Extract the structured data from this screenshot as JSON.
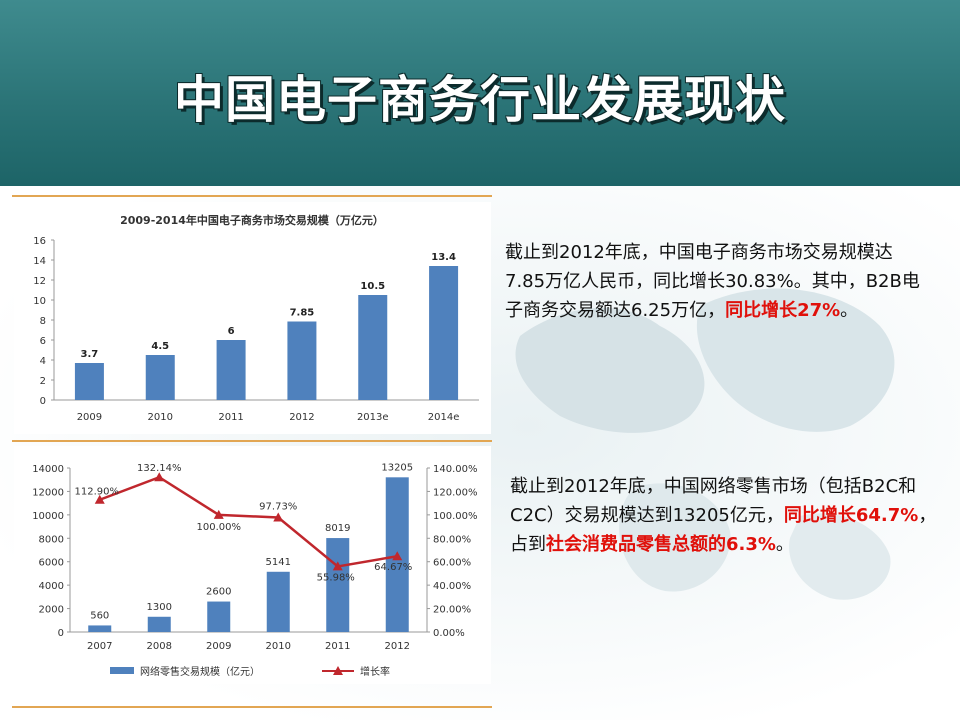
{
  "slide": {
    "title": "中国电子商务行业发展现状"
  },
  "text1": {
    "prefix": "截止到2012年底，中国电子商务市场交易规模达7.85万亿人民币，同比增长30.83%。其中，B2B电子商务交易额达6.25万亿，",
    "highlight": "同比增长27%",
    "suffix": "。"
  },
  "text2": {
    "prefix": "截止到2012年底，中国网络零售市场（包括B2C和C2C）交易规模达到13205亿元，",
    "highlight1": "同比增长64.7%",
    "middle": "，占到",
    "highlight2": "社会消费品零售总额的6.3%",
    "suffix": "。"
  },
  "colors": {
    "bar": "#4f81bd",
    "line": "#c0272d",
    "rule": "#e2a653",
    "header": "#2b7477"
  },
  "chart_data": [
    {
      "type": "bar",
      "title": "2009-2014年中国电子商务市场交易规模（万亿元）",
      "categories": [
        "2009",
        "2010",
        "2011",
        "2012",
        "2013e",
        "2014e"
      ],
      "values": [
        3.7,
        4.5,
        6,
        7.85,
        10.5,
        13.4
      ],
      "ylim": [
        0,
        16
      ],
      "yticks": [
        "0",
        "2",
        "4",
        "6",
        "8",
        "10",
        "12",
        "14",
        "16"
      ],
      "grid": false
    },
    {
      "type": "bar",
      "categories": [
        "2007",
        "2008",
        "2009",
        "2010",
        "2011",
        "2012"
      ],
      "series": [
        {
          "name": "网络零售交易规模（亿元）",
          "values": [
            560,
            1300,
            2600,
            5141,
            8019,
            13205
          ]
        },
        {
          "name": "增长率",
          "values": [
            112.9,
            132.14,
            100.0,
            97.73,
            55.98,
            64.67
          ],
          "labels": [
            "112.90%",
            "132.14%",
            "100.00%",
            "97.73%",
            "55.98%",
            "64.67%"
          ]
        }
      ],
      "ylim": [
        0,
        14000
      ],
      "y2lim": [
        0,
        140
      ],
      "yticks": [
        "0",
        "2000",
        "4000",
        "6000",
        "8000",
        "10000",
        "12000",
        "14000"
      ],
      "y2ticks": [
        "0.00%",
        "20.00%",
        "40.00%",
        "60.00%",
        "80.00%",
        "100.00%",
        "120.00%",
        "140.00%"
      ],
      "legend_position": "bottom",
      "grid": false
    }
  ]
}
